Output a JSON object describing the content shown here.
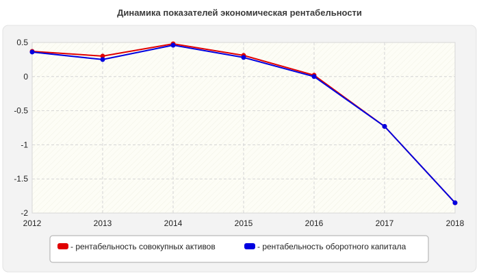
{
  "chart_data": {
    "type": "line",
    "title": "Динамика показателей экономическая рентабельности",
    "xlabel": "",
    "ylabel": "",
    "x": [
      "2012",
      "2013",
      "2014",
      "2015",
      "2016",
      "2017",
      "2018"
    ],
    "xlim": [
      2012,
      2018
    ],
    "ylim": [
      -2,
      0.5
    ],
    "yticks": [
      0.5,
      0,
      -0.5,
      -1,
      -1.5,
      -2
    ],
    "ytick_labels": [
      "0.5",
      "0",
      "-0.5",
      "-1",
      "-1.5",
      "-2"
    ],
    "grid": true,
    "legend_position": "bottom",
    "series": [
      {
        "name": "- рентабельность совокупных активов",
        "color": "#e00000",
        "values": [
          0.37,
          0.3,
          0.48,
          0.31,
          0.02,
          -0.73,
          -1.85
        ]
      },
      {
        "name": "- рентабельность оборотного капитала",
        "color": "#0000e0",
        "values": [
          0.36,
          0.25,
          0.46,
          0.28,
          0.0,
          -0.73,
          -1.85
        ]
      }
    ]
  }
}
